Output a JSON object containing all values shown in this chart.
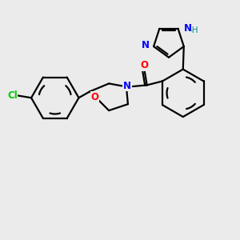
{
  "bg_color": "#ebebeb",
  "bond_color": "#000000",
  "atom_colors": {
    "Cl": "#00cc00",
    "O": "#ff0000",
    "N": "#0000ff",
    "NH": "#008b8b",
    "C": "#000000"
  },
  "lw": 1.6,
  "fs": 8.5,
  "figsize": [
    3.0,
    3.0
  ],
  "dpi": 100
}
